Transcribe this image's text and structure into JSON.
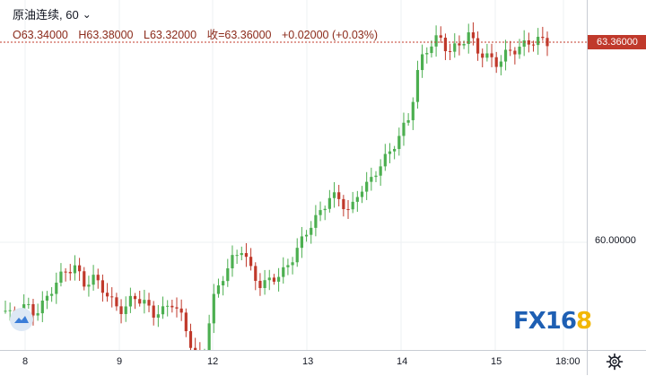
{
  "instrument": {
    "name": "原油连续, 60",
    "caret": "⌄"
  },
  "ohlc": {
    "open": "O63.34000",
    "high": "H63.38000",
    "low": "L63.32000",
    "close": "收=63.36000",
    "change": "+0.02000 (+0.03%)"
  },
  "price_axis": {
    "labels": [
      "63.36000",
      "60.00000"
    ],
    "current_price": "63.36000"
  },
  "time_axis": {
    "labels": [
      "8",
      "9",
      "12",
      "13",
      "14",
      "15",
      "18:00"
    ]
  },
  "watermark": {
    "text_a": "FX16",
    "text_b": "8"
  },
  "colors": {
    "up": "#4caf50",
    "down": "#c0392b",
    "price_line": "#c0392b",
    "grid": "#eef0f3"
  },
  "icons": {
    "logo": "cloud-chart-icon",
    "settings": "gear-icon"
  },
  "chart_data": {
    "type": "candlestick",
    "interval": "60",
    "x_ticks": [
      "8",
      "9",
      "12",
      "13",
      "14",
      "15",
      "18:00"
    ],
    "y_ticks": [
      60.0,
      63.36
    ],
    "last_close": 63.36,
    "close_path": [
      58.85,
      58.7,
      58.95,
      58.8,
      59.0,
      59.3,
      59.5,
      59.6,
      59.3,
      59.4,
      59.2,
      58.95,
      58.85,
      59.1,
      59.0,
      58.8,
      58.85,
      59.0,
      58.7,
      58.2,
      58.0,
      59.0,
      59.4,
      59.7,
      59.9,
      59.5,
      59.25,
      59.4,
      59.45,
      59.7,
      60.0,
      60.3,
      60.5,
      60.8,
      60.7,
      60.5,
      60.9,
      61.0,
      61.3,
      61.5,
      61.8,
      62.1,
      63.0,
      63.3,
      63.45,
      63.2,
      63.3,
      63.5,
      63.2,
      63.1,
      63.0,
      63.2,
      63.25,
      63.35,
      63.4,
      63.36
    ],
    "annotations": [
      "63.36000",
      "60.00000"
    ]
  }
}
